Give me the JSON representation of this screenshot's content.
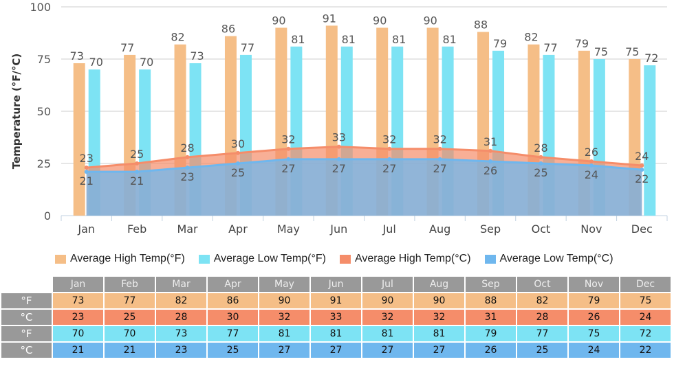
{
  "chart_data": {
    "type": "bar+area",
    "categories": [
      "Jan",
      "Feb",
      "Mar",
      "Apr",
      "May",
      "Jun",
      "Jul",
      "Aug",
      "Sep",
      "Oct",
      "Nov",
      "Dec"
    ],
    "ylabel": "Temperature (°F/°C)",
    "ylim": [
      0,
      100
    ],
    "yticks": [
      0,
      25,
      50,
      75,
      100
    ],
    "grid": true,
    "legend_position": "bottom",
    "series": [
      {
        "name": "Average High Temp(°F)",
        "kind": "bar",
        "color": "#f5be87",
        "values": [
          73,
          77,
          82,
          86,
          90,
          91,
          90,
          90,
          88,
          82,
          79,
          75
        ]
      },
      {
        "name": "Average Low Temp(°F)",
        "kind": "bar",
        "color": "#7de3f4",
        "values": [
          70,
          70,
          73,
          77,
          81,
          81,
          81,
          81,
          79,
          77,
          75,
          72
        ]
      },
      {
        "name": "Average High Temp(°C)",
        "kind": "area",
        "color": "#f58d6a",
        "values": [
          23,
          25,
          28,
          30,
          32,
          33,
          32,
          32,
          31,
          28,
          26,
          24
        ]
      },
      {
        "name": "Average Low Temp(°C)",
        "kind": "area",
        "color": "#6fb7ee",
        "values": [
          21,
          21,
          23,
          25,
          27,
          27,
          27,
          27,
          26,
          25,
          24,
          22
        ]
      }
    ]
  },
  "table": {
    "row_labels": [
      "°F",
      "°C",
      "°F",
      "°C"
    ]
  }
}
